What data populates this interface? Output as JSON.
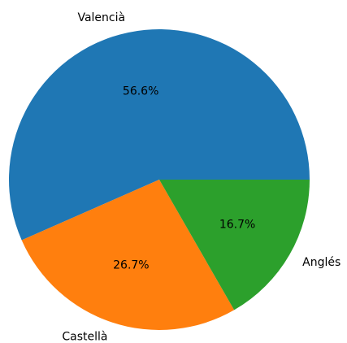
{
  "chart_data": {
    "type": "pie",
    "categories": [
      "Valencià",
      "Castellà",
      "Anglés"
    ],
    "values": [
      56.6,
      26.7,
      16.7
    ],
    "value_labels": [
      "56.6%",
      "26.7%",
      "16.7%"
    ],
    "colors": [
      "#1f77b4",
      "#ff7f0e",
      "#2ca02c"
    ]
  }
}
